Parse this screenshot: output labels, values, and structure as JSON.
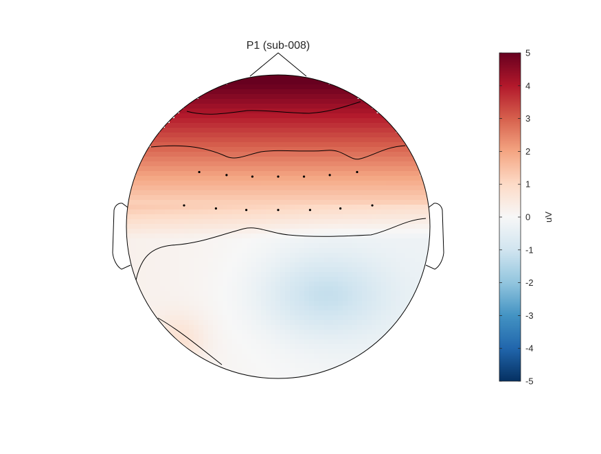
{
  "chart_data": {
    "type": "heatmap",
    "title": "P1 (sub-008)",
    "colorbar": {
      "label": "uV",
      "range": [
        -5,
        5
      ],
      "ticks": [
        5,
        4,
        3,
        2,
        1,
        0,
        -1,
        -2,
        -3,
        -4,
        -5
      ],
      "tick_labels": [
        "5",
        "4",
        "3",
        "2",
        "1",
        "0",
        "-1",
        "-2",
        "-3",
        "-4",
        "-5"
      ],
      "colormap": [
        "#053061",
        "#2166ac",
        "#4393c3",
        "#92c5de",
        "#d1e5f0",
        "#f7f7f7",
        "#fddbc7",
        "#f4a582",
        "#d6604d",
        "#b2182b",
        "#67001f"
      ]
    },
    "electrodes": {
      "front_row": [
        {
          "x": -0.52,
          "y": 0.36
        },
        {
          "x": -0.34,
          "y": 0.34
        },
        {
          "x": -0.17,
          "y": 0.33
        },
        {
          "x": 0.0,
          "y": 0.33
        },
        {
          "x": 0.17,
          "y": 0.33
        },
        {
          "x": 0.34,
          "y": 0.34
        },
        {
          "x": 0.52,
          "y": 0.36
        }
      ],
      "back_row": [
        {
          "x": -0.62,
          "y": 0.14
        },
        {
          "x": -0.41,
          "y": 0.12
        },
        {
          "x": -0.21,
          "y": 0.11
        },
        {
          "x": 0.0,
          "y": 0.11
        },
        {
          "x": 0.21,
          "y": 0.11
        },
        {
          "x": 0.41,
          "y": 0.12
        },
        {
          "x": 0.62,
          "y": 0.14
        }
      ]
    },
    "field_description": "max ~5 uV at frontal pole, ~2 uV at front electrode row, ~1 uV at back electrode row, 0 near midline, about -1 uV in posterior right",
    "contour_levels": [
      4,
      2,
      0,
      1
    ]
  }
}
